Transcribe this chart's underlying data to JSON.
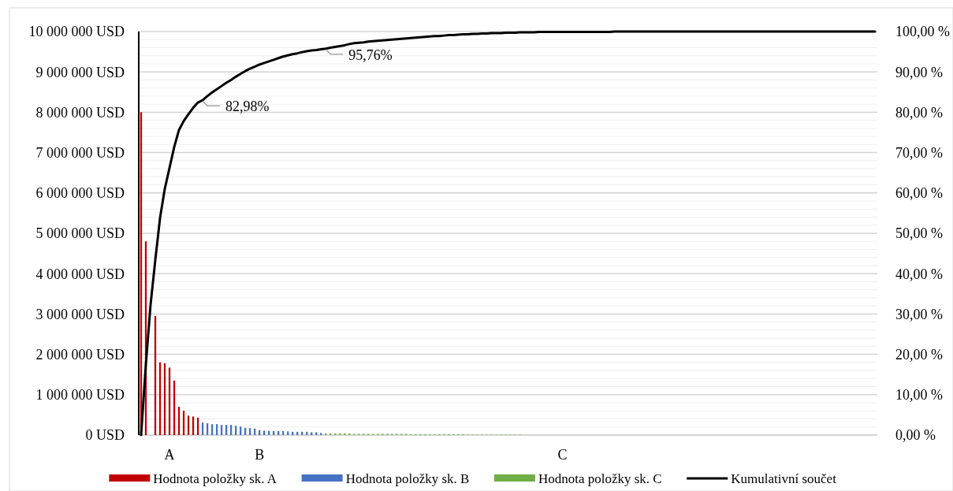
{
  "chart_data": {
    "type": "bar",
    "categories": [
      null,
      null,
      null,
      null,
      null,
      null,
      "A",
      null,
      null,
      null,
      null,
      null,
      null,
      null,
      null,
      null,
      null,
      null,
      null,
      null,
      null,
      null,
      null,
      null,
      null,
      "B",
      null,
      null,
      null,
      null,
      null,
      null,
      null,
      null,
      null,
      null,
      null,
      null,
      null,
      null,
      null,
      null,
      null,
      null,
      null,
      null,
      null,
      null,
      null,
      null,
      null,
      null,
      null,
      null,
      null,
      null,
      null,
      null,
      null,
      null,
      null,
      null,
      null,
      null,
      null,
      null,
      null,
      null,
      null,
      null,
      null,
      null,
      null,
      null,
      null,
      null,
      null,
      null,
      null,
      null,
      null,
      null,
      null,
      null,
      null,
      null,
      null,
      null,
      null,
      "C",
      null,
      null,
      null,
      null,
      null,
      null,
      null,
      null,
      null,
      null,
      null,
      null,
      null,
      null,
      null,
      null,
      null,
      null,
      null,
      null,
      null,
      null,
      null,
      null,
      null,
      null,
      null,
      null,
      null,
      null,
      null,
      null,
      null,
      null,
      null,
      null,
      null,
      null,
      null,
      null,
      null,
      null,
      null,
      null,
      null,
      null,
      null,
      null,
      null,
      null,
      null,
      null,
      null,
      null,
      null,
      null,
      null,
      null,
      null,
      null,
      null,
      null,
      null,
      null,
      null,
      null
    ],
    "series": [
      {
        "name": "Hodnota položky sk. A",
        "color": "#c00000",
        "values": [
          8000000,
          4800000,
          null,
          2950000,
          1800000,
          1780000,
          1670000,
          1350000,
          700000,
          600000,
          480000,
          460000,
          430000,
          null,
          null,
          null,
          null,
          null,
          null,
          null,
          null,
          null,
          null,
          null,
          null,
          null,
          null,
          null,
          null,
          null,
          null,
          null,
          null,
          null,
          null,
          null,
          null,
          null,
          null,
          null,
          null,
          null,
          null,
          null,
          null,
          null,
          null,
          null,
          null,
          null,
          null,
          null,
          null,
          null,
          null,
          null,
          null,
          null,
          null,
          null,
          null,
          null,
          null,
          null,
          null,
          null,
          null,
          null,
          null,
          null,
          null,
          null,
          null,
          null,
          null,
          null,
          null,
          null,
          null,
          null,
          null,
          null,
          null,
          null,
          null,
          null,
          null,
          null,
          null,
          null,
          null,
          null,
          null,
          null,
          null,
          null,
          null,
          null,
          null,
          null,
          null,
          null,
          null,
          null,
          null,
          null,
          null,
          null,
          null,
          null,
          null,
          null,
          null,
          null,
          null,
          null,
          null,
          null,
          null,
          null,
          null,
          null,
          null,
          null,
          null,
          null,
          null,
          null,
          null,
          null,
          null,
          null,
          null,
          null,
          null,
          null,
          null,
          null,
          null,
          null,
          null,
          null,
          null,
          null,
          null,
          null,
          null,
          null,
          null,
          null,
          null,
          null,
          null,
          null,
          null,
          null
        ]
      },
      {
        "name": "Hodnota položky sk. B",
        "color": "#4472c4",
        "values": [
          null,
          null,
          null,
          null,
          null,
          null,
          null,
          null,
          null,
          null,
          null,
          null,
          null,
          310000,
          290000,
          270000,
          270000,
          250000,
          250000,
          250000,
          230000,
          210000,
          180000,
          170000,
          160000,
          120000,
          110000,
          100000,
          100000,
          100000,
          100000,
          90000,
          80000,
          80000,
          80000,
          80000,
          70000,
          70000,
          50000,
          null,
          null,
          null,
          null,
          null,
          null,
          null,
          null,
          null,
          null,
          null,
          null,
          null,
          null,
          null,
          null,
          null,
          null,
          null,
          null,
          null,
          null,
          null,
          null,
          null,
          null,
          null,
          null,
          null,
          null,
          null,
          null,
          null,
          null,
          null,
          null,
          null,
          null,
          null,
          null,
          null,
          null,
          null,
          null,
          null,
          null,
          null,
          null,
          null,
          null,
          null,
          null,
          null,
          null,
          null,
          null,
          null,
          null,
          null,
          null,
          null,
          null,
          null,
          null,
          null,
          null,
          null,
          null,
          null,
          null,
          null,
          null,
          null,
          null,
          null,
          null,
          null,
          null,
          null,
          null,
          null,
          null,
          null,
          null,
          null,
          null,
          null,
          null,
          null,
          null,
          null,
          null,
          null,
          null,
          null,
          null,
          null,
          null,
          null,
          null,
          null,
          null,
          null,
          null,
          null,
          null,
          null,
          null,
          null,
          null,
          null,
          null,
          null,
          null,
          null,
          null,
          null
        ]
      },
      {
        "name": "Hodnota položky sk. C",
        "color": "#70ad47",
        "values": [
          null,
          null,
          null,
          null,
          null,
          null,
          null,
          null,
          null,
          null,
          null,
          null,
          null,
          null,
          null,
          null,
          null,
          null,
          null,
          null,
          null,
          null,
          null,
          null,
          null,
          null,
          null,
          null,
          null,
          null,
          null,
          null,
          null,
          null,
          null,
          null,
          null,
          null,
          null,
          40000,
          40000,
          40000,
          40000,
          40000,
          40000,
          30000,
          30000,
          30000,
          30000,
          30000,
          30000,
          30000,
          30000,
          30000,
          30000,
          30000,
          30000,
          20000,
          20000,
          20000,
          20000,
          20000,
          20000,
          20000,
          20000,
          20000,
          20000,
          20000,
          20000,
          10000,
          10000,
          10000,
          10000,
          10000,
          10000,
          10000,
          10000,
          10000,
          10000,
          10000,
          10000,
          null,
          null,
          null,
          null,
          null,
          null,
          null,
          null,
          null,
          null,
          null,
          null,
          null,
          null,
          null,
          null,
          null,
          null,
          null,
          null,
          null,
          null,
          null,
          null,
          null,
          null,
          null,
          null,
          null,
          null,
          null,
          null,
          null,
          null,
          null,
          null,
          null,
          null,
          null,
          null,
          null,
          null,
          null,
          null,
          null,
          null,
          null,
          null,
          null,
          null,
          null,
          null,
          null,
          null,
          null,
          null,
          null,
          null,
          null,
          null,
          null,
          null,
          null,
          null,
          null,
          null,
          null,
          null,
          null,
          null,
          null,
          null,
          null,
          null,
          null
        ]
      },
      {
        "name": "Kumulativní součet",
        "type": "line",
        "axis": "y2",
        "color": "#000000",
        "values": [
          0,
          17.4,
          32.3,
          43.4,
          53.8,
          61,
          66.2,
          71.4,
          75.6,
          77.8,
          79.5,
          81.1,
          82.4,
          82.98,
          84,
          84.9,
          85.7,
          86.5,
          87.3,
          88,
          88.8,
          89.5,
          90.2,
          90.8,
          91.3,
          91.8,
          92.2,
          92.6,
          93,
          93.4,
          93.8,
          94.1,
          94.4,
          94.6,
          94.9,
          95.1,
          95.3,
          95.4,
          95.6,
          95.76,
          96,
          96.2,
          96.4,
          96.6,
          96.9,
          97.1,
          97.2,
          97.3,
          97.5,
          97.6,
          97.7,
          97.8,
          97.9,
          98,
          98.1,
          98.2,
          98.3,
          98.4,
          98.5,
          98.6,
          98.7,
          98.8,
          98.9,
          98.9,
          99,
          99.1,
          99.1,
          99.2,
          99.3,
          99.3,
          99.4,
          99.4,
          99.5,
          99.5,
          99.6,
          99.6,
          99.6,
          99.7,
          99.7,
          99.7,
          99.8,
          99.8,
          99.8,
          99.8,
          99.9,
          99.9,
          99.9,
          99.9,
          99.9,
          99.9,
          99.9,
          99.9,
          99.9,
          99.9,
          99.9,
          99.9,
          99.9,
          99.9,
          99.9,
          99.9,
          100,
          100,
          100,
          100,
          100,
          100,
          100,
          100,
          100,
          100,
          100,
          100,
          100,
          100,
          100,
          100,
          100,
          100,
          100,
          100,
          100,
          100,
          100,
          100,
          100,
          100,
          100,
          100,
          100,
          100,
          100,
          100,
          100,
          100,
          100,
          100,
          100,
          100,
          100,
          100,
          100,
          100,
          100,
          100,
          100,
          100,
          100,
          100,
          100,
          100,
          100,
          100,
          100,
          100,
          100,
          100
        ],
        "value_labels": [
          null,
          null,
          null,
          null,
          null,
          null,
          null,
          null,
          null,
          null,
          null,
          null,
          null,
          "82,98%",
          null,
          null,
          null,
          null,
          null,
          null,
          null,
          null,
          null,
          null,
          null,
          null,
          null,
          null,
          null,
          null,
          null,
          null,
          null,
          null,
          null,
          null,
          null,
          null,
          null,
          "95,76%",
          null,
          null,
          null,
          null,
          null,
          null,
          null,
          null,
          null,
          null,
          null,
          null,
          null,
          null,
          null,
          null,
          null,
          null,
          null,
          null,
          null,
          null,
          null,
          null,
          null,
          null,
          null,
          null,
          null,
          null,
          null,
          null,
          null,
          null,
          null,
          null,
          null,
          null,
          null,
          null,
          null,
          null,
          null,
          null,
          null,
          null,
          null,
          null,
          null,
          null,
          null,
          null,
          null,
          null,
          null,
          null,
          null,
          null,
          null,
          null,
          null,
          null,
          null,
          null,
          null,
          null,
          null,
          null,
          null,
          null,
          null,
          null,
          null,
          null,
          null,
          null,
          null,
          null,
          null,
          null,
          null,
          null,
          null,
          null,
          null,
          null,
          null,
          null,
          null,
          null,
          null,
          null,
          null,
          null,
          null,
          null,
          null,
          null,
          null,
          null,
          null,
          null,
          null,
          null,
          null,
          null,
          null,
          null,
          null,
          null,
          null,
          null,
          null,
          null,
          null,
          null
        ]
      }
    ],
    "ylim": [
      0,
      10000000
    ],
    "yticks": [
      {
        "value": 0,
        "label": "0 USD"
      },
      {
        "value": 200000,
        "label": null
      },
      {
        "value": 400000,
        "label": null
      },
      {
        "value": 600000,
        "label": null
      },
      {
        "value": 800000,
        "label": null
      },
      {
        "value": 1000000,
        "label": "1 000 000 USD"
      },
      {
        "value": 1200000,
        "label": null
      },
      {
        "value": 1400000,
        "label": null
      },
      {
        "value": 1600000,
        "label": null
      },
      {
        "value": 1800000,
        "label": null
      },
      {
        "value": 2000000,
        "label": "2 000 000 USD"
      },
      {
        "value": 2200000,
        "label": null
      },
      {
        "value": 2400000,
        "label": null
      },
      {
        "value": 2600000,
        "label": null
      },
      {
        "value": 2800000,
        "label": null
      },
      {
        "value": 3000000,
        "label": "3 000 000 USD"
      },
      {
        "value": 3200000,
        "label": null
      },
      {
        "value": 3400000,
        "label": null
      },
      {
        "value": 3600000,
        "label": null
      },
      {
        "value": 3800000,
        "label": null
      },
      {
        "value": 4000000,
        "label": "4 000 000 USD"
      },
      {
        "value": 4200000,
        "label": null
      },
      {
        "value": 4400000,
        "label": null
      },
      {
        "value": 4600000,
        "label": null
      },
      {
        "value": 4800000,
        "label": null
      },
      {
        "value": 5000000,
        "label": "5 000 000 USD"
      },
      {
        "value": 5200000,
        "label": null
      },
      {
        "value": 5400000,
        "label": null
      },
      {
        "value": 5600000,
        "label": null
      },
      {
        "value": 5800000,
        "label": null
      },
      {
        "value": 6000000,
        "label": "6 000 000 USD"
      },
      {
        "value": 6200000,
        "label": null
      },
      {
        "value": 6400000,
        "label": null
      },
      {
        "value": 6600000,
        "label": null
      },
      {
        "value": 6800000,
        "label": null
      },
      {
        "value": 7000000,
        "label": "7 000 000 USD"
      },
      {
        "value": 7200000,
        "label": null
      },
      {
        "value": 7400000,
        "label": null
      },
      {
        "value": 7600000,
        "label": null
      },
      {
        "value": 7800000,
        "label": null
      },
      {
        "value": 8000000,
        "label": "8 000 000 USD"
      },
      {
        "value": 8200000,
        "label": null
      },
      {
        "value": 8400000,
        "label": null
      },
      {
        "value": 8600000,
        "label": null
      },
      {
        "value": 8800000,
        "label": null
      },
      {
        "value": 9000000,
        "label": "9 000 000 USD"
      },
      {
        "value": 9200000,
        "label": null
      },
      {
        "value": 9400000,
        "label": null
      },
      {
        "value": 9600000,
        "label": null
      },
      {
        "value": 9800000,
        "label": null
      },
      {
        "value": 10000000,
        "label": "10 000 000 USD"
      }
    ],
    "y2lim": [
      0,
      100
    ],
    "y2ticks": [
      {
        "value": 0,
        "label": "0,00 %"
      },
      {
        "value": 10,
        "label": "10,00 %"
      },
      {
        "value": 20,
        "label": "20,00 %"
      },
      {
        "value": 30,
        "label": "30,00 %"
      },
      {
        "value": 40,
        "label": "40,00 %"
      },
      {
        "value": 50,
        "label": "50,00 %"
      },
      {
        "value": 60,
        "label": "60,00 %"
      },
      {
        "value": 70,
        "label": "70,00 %"
      },
      {
        "value": 80,
        "label": "80,00 %"
      },
      {
        "value": 90,
        "label": "90,00 %"
      },
      {
        "value": 100,
        "label": "100,00 %"
      }
    ],
    "grid": "y",
    "legend": "bottom"
  }
}
